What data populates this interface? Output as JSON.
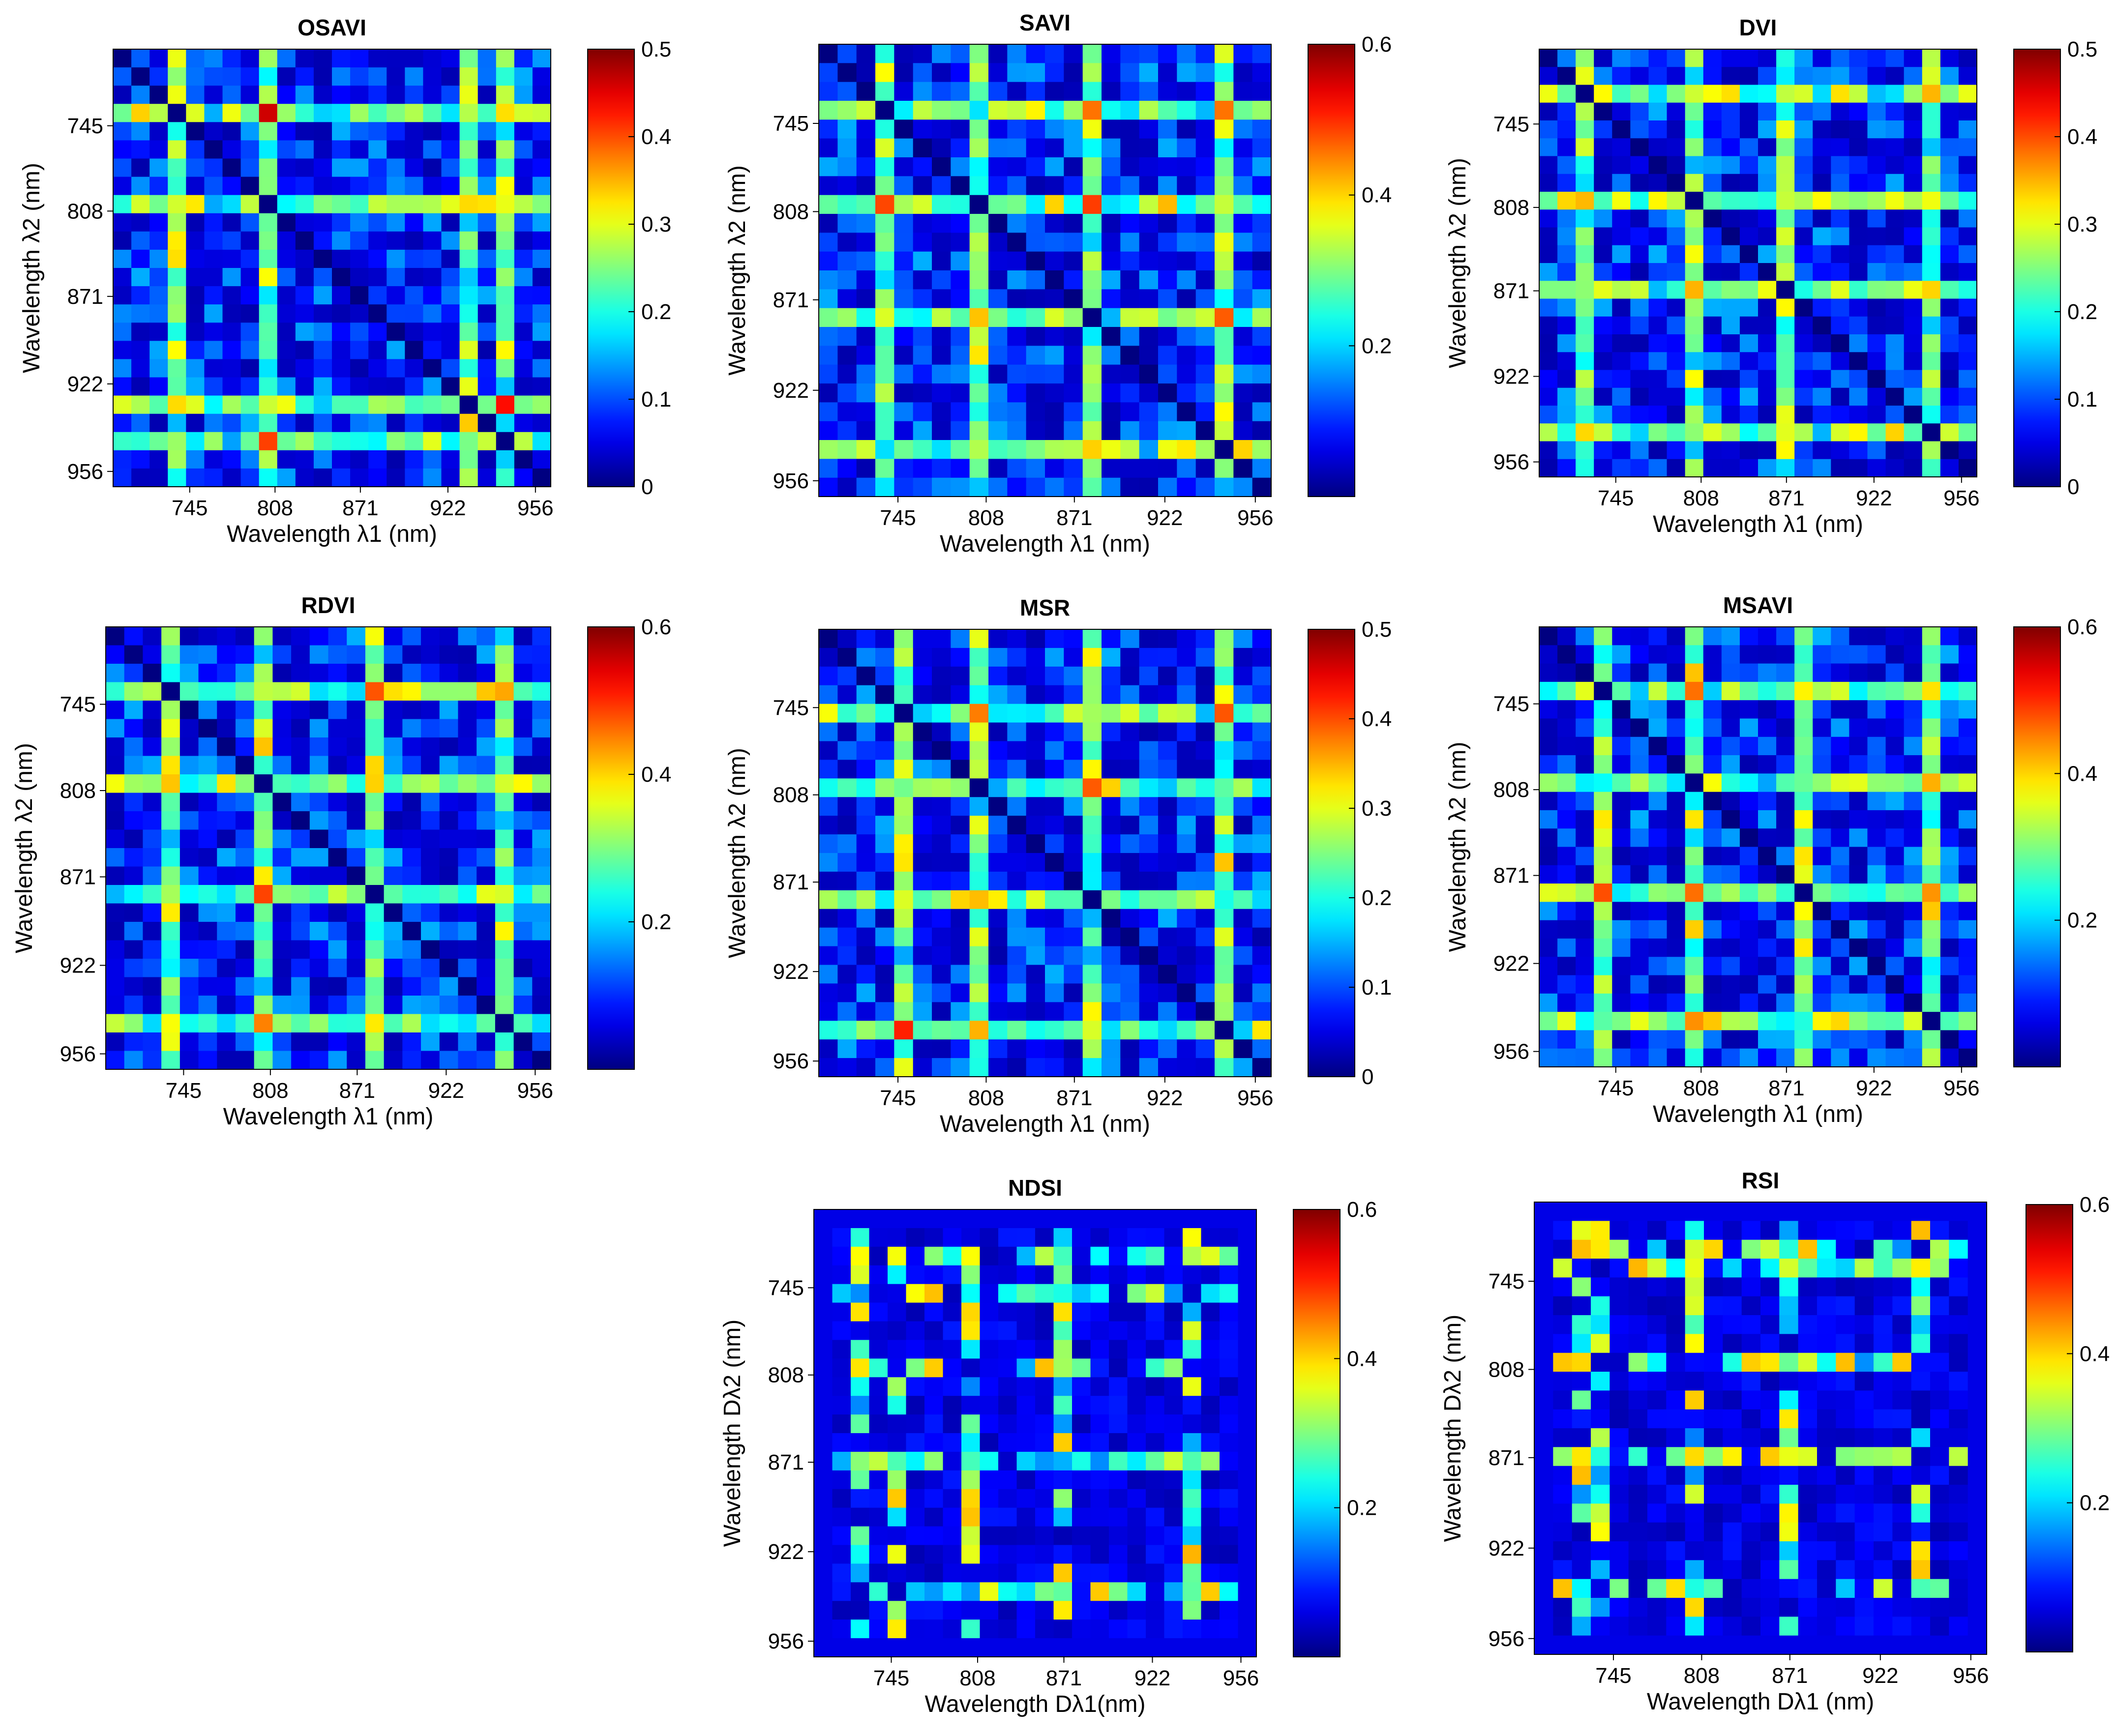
{
  "figure": {
    "description_free": true
  },
  "chart_data": [
    {
      "type": "heatmap",
      "title": "OSAVI",
      "xlabel": "Wavelength λ1 (nm)",
      "ylabel": "Wavelength λ2 (nm)",
      "tick_labels": [
        "745",
        "808",
        "871",
        "922",
        "956"
      ],
      "colorbar_ticks": [
        "0",
        "0.1",
        "0.2",
        "0.3",
        "0.4",
        "0.5"
      ],
      "clim": [
        0,
        0.5
      ],
      "colormap": "jet",
      "grid_cells": 24,
      "hotspot_bands": [
        3,
        8,
        19,
        21
      ],
      "peak_value": 0.5
    },
    {
      "type": "heatmap",
      "title": "SAVI",
      "xlabel": "Wavelength λ1 (nm)",
      "ylabel": "Wavelength λ2 (nm)",
      "tick_labels": [
        "745",
        "808",
        "871",
        "922",
        "956"
      ],
      "colorbar_ticks": [
        "0.2",
        "0.4",
        "0.6"
      ],
      "clim": [
        0,
        0.6
      ],
      "colormap": "jet",
      "grid_cells": 24,
      "hotspot_bands": [
        3,
        8,
        14,
        21
      ],
      "peak_value": 0.6
    },
    {
      "type": "heatmap",
      "title": "DVI",
      "xlabel": "Wavelength λ1 (nm)",
      "ylabel": "Wavelength λ2 (nm)",
      "tick_labels": [
        "745",
        "808",
        "871",
        "922",
        "956"
      ],
      "colorbar_ticks": [
        "0",
        "0.1",
        "0.2",
        "0.3",
        "0.4",
        "0.5"
      ],
      "clim": [
        0,
        0.5
      ],
      "colormap": "jet",
      "grid_cells": 24,
      "hotspot_bands": [
        2,
        8,
        13,
        21
      ],
      "peak_value": 0.5
    },
    {
      "type": "heatmap",
      "title": "RDVI",
      "xlabel": "Wavelength λ1 (nm)",
      "ylabel": "Wavelength λ2 (nm)",
      "tick_labels": [
        "745",
        "808",
        "871",
        "922",
        "956"
      ],
      "colorbar_ticks": [
        "0.2",
        "0.4",
        "0.6"
      ],
      "clim": [
        0,
        0.6
      ],
      "colormap": "jet",
      "grid_cells": 24,
      "hotspot_bands": [
        3,
        8,
        14,
        21
      ],
      "peak_value": 0.6
    },
    {
      "type": "heatmap",
      "title": "MSR",
      "xlabel": "Wavelength λ1 (nm)",
      "ylabel": "Wavelength λ2 (nm)",
      "tick_labels": [
        "745",
        "808",
        "871",
        "922",
        "956"
      ],
      "colorbar_ticks": [
        "0",
        "0.1",
        "0.2",
        "0.3",
        "0.4",
        "0.5"
      ],
      "clim": [
        0,
        0.5
      ],
      "colormap": "jet",
      "grid_cells": 24,
      "hotspot_bands": [
        4,
        8,
        14,
        21
      ],
      "peak_value": 0.5
    },
    {
      "type": "heatmap",
      "title": "MSAVI",
      "xlabel": "Wavelength λ1 (nm)",
      "ylabel": "Wavelength λ2 (nm)",
      "tick_labels": [
        "745",
        "808",
        "871",
        "922",
        "956"
      ],
      "colorbar_ticks": [
        "0.2",
        "0.4",
        "0.6"
      ],
      "clim": [
        0,
        0.6
      ],
      "colormap": "jet",
      "grid_cells": 24,
      "hotspot_bands": [
        3,
        8,
        14,
        21
      ],
      "peak_value": 0.6
    },
    {
      "type": "heatmap",
      "title": "NDSI",
      "xlabel": "Wavelength Dλ1(nm)",
      "ylabel": "Wavelength Dλ2 (nm)",
      "tick_labels": [
        "745",
        "808",
        "871",
        "922",
        "956"
      ],
      "colorbar_ticks": [
        "0.2",
        "0.4",
        "0.6"
      ],
      "clim": [
        0,
        0.6
      ],
      "colormap": "jet",
      "grid_cells": 24,
      "hotspot_bands": [
        2,
        4,
        8,
        13,
        20
      ],
      "peak_value": 0.6
    },
    {
      "type": "heatmap",
      "title": "RSI",
      "xlabel": "Wavelength Dλ1 (nm)",
      "ylabel": "Wavelength Dλ2 (nm)",
      "tick_labels": [
        "745",
        "808",
        "871",
        "922",
        "956"
      ],
      "colorbar_ticks": [
        "0.2",
        "0.4",
        "0.6"
      ],
      "clim": [
        0,
        0.6
      ],
      "colormap": "jet",
      "grid_cells": 24,
      "hotspot_bands": [
        2,
        3,
        8,
        13,
        20
      ],
      "peak_value": 0.6
    }
  ]
}
